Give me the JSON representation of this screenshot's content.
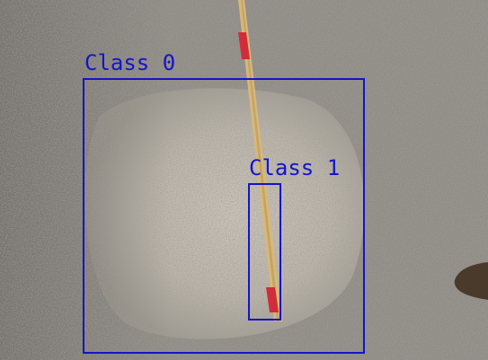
{
  "detections": [
    {
      "label": "Class 0"
    },
    {
      "label": "Class 1"
    }
  ],
  "colors": {
    "box": "#1414c8",
    "ground": "#8e8a84",
    "ground_light": "#c9c2b6",
    "stick": "#d8b878",
    "stick_red": "#d02c3a"
  },
  "icons": [
    "wooden-ruler",
    "shoe"
  ]
}
